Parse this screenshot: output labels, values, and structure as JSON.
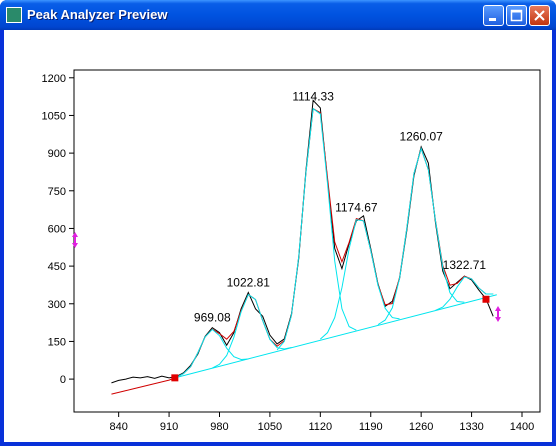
{
  "window": {
    "title": "Peak Analyzer Preview"
  },
  "chart_data": {
    "type": "line",
    "xlim": [
      778,
      1425
    ],
    "ylim": [
      -131,
      1231
    ],
    "xticks": [
      840,
      910,
      980,
      1050,
      1120,
      1190,
      1260,
      1330,
      1400
    ],
    "yticks": [
      0,
      150,
      300,
      450,
      600,
      750,
      900,
      1050,
      1200
    ],
    "series": [
      {
        "color": "#000000",
        "x": [
          830,
          840,
          850,
          860,
          870,
          880,
          890,
          900,
          910,
          920,
          930,
          940,
          950,
          960,
          970,
          980,
          990,
          1000,
          1010,
          1020,
          1030,
          1040,
          1050,
          1060,
          1070,
          1080,
          1090,
          1100,
          1110,
          1120,
          1130,
          1140,
          1150,
          1160,
          1170,
          1180,
          1190,
          1200,
          1210,
          1220,
          1230,
          1240,
          1250,
          1260,
          1270,
          1280,
          1290,
          1300,
          1310,
          1320,
          1330,
          1340,
          1350,
          1360
        ],
        "values": [
          -15,
          -5,
          0,
          8,
          5,
          10,
          3,
          12,
          5,
          10,
          25,
          55,
          100,
          170,
          205,
          185,
          135,
          185,
          280,
          345,
          280,
          250,
          175,
          140,
          160,
          260,
          480,
          830,
          1110,
          1080,
          790,
          520,
          440,
          540,
          630,
          650,
          520,
          380,
          290,
          310,
          400,
          590,
          810,
          925,
          860,
          620,
          430,
          360,
          385,
          410,
          395,
          355,
          320,
          250
        ]
      },
      {
        "color": "#d00000",
        "x": [
          830,
          840,
          850,
          860,
          870,
          880,
          890,
          900,
          910,
          920,
          930,
          940,
          950,
          960,
          970,
          980,
          990,
          1000,
          1010,
          1020,
          1030,
          1040,
          1050,
          1060,
          1070,
          1080,
          1090,
          1100,
          1110,
          1120,
          1130,
          1140,
          1150,
          1160,
          1170,
          1180,
          1190,
          1200,
          1210,
          1220,
          1230,
          1240,
          1250,
          1260,
          1270,
          1280,
          1290,
          1300,
          1310,
          1320,
          1330,
          1340,
          1350,
          1360
        ],
        "values": [
          -60,
          -53,
          -46,
          -39,
          -32,
          -25,
          -18,
          -11,
          -4,
          7,
          22,
          50,
          105,
          168,
          199,
          181,
          159,
          190,
          273,
          337,
          317,
          233,
          159,
          131,
          153,
          255,
          487,
          822,
          1077,
          1061,
          801,
          546,
          467,
          545,
          639,
          630,
          512,
          377,
          296,
          301,
          405,
          599,
          819,
          918,
          834,
          630,
          452,
          374,
          381,
          410,
          399,
          363,
          339,
          339
        ]
      },
      {
        "color": "#00e5ee",
        "x": [
          918,
          1365
        ],
        "values": [
          5,
          336
        ]
      },
      {
        "color": "#00e5ee",
        "label": "969.08",
        "x": [
          920,
          930,
          940,
          950,
          960,
          970,
          980,
          990,
          1000,
          1010,
          1020
        ],
        "values": [
          7,
          22,
          50,
          105,
          168,
          198,
          173,
          123,
          89,
          78,
          80
        ]
      },
      {
        "color": "#00e5ee",
        "label": "1022.81",
        "x": [
          970,
          980,
          990,
          1000,
          1010,
          1020,
          1030,
          1040,
          1050,
          1060,
          1070,
          1080
        ],
        "values": [
          44,
          59,
          94,
          167,
          268,
          337,
          317,
          233,
          158,
          125,
          120,
          126
        ]
      },
      {
        "color": "#00e5ee",
        "label": "1114.33",
        "x": [
          1060,
          1070,
          1080,
          1090,
          1100,
          1110,
          1120,
          1130,
          1140,
          1150,
          1160,
          1170
        ],
        "values": [
          116,
          150,
          255,
          487,
          822,
          1077,
          1056,
          778,
          470,
          280,
          209,
          195
        ]
      },
      {
        "color": "#00e5ee",
        "label": "1174.67",
        "x": [
          1120,
          1130,
          1140,
          1150,
          1160,
          1170,
          1180,
          1190,
          1200,
          1210,
          1220,
          1230
        ],
        "values": [
          159,
          185,
          245,
          364,
          520,
          635,
          630,
          512,
          374,
          282,
          245,
          240
        ]
      },
      {
        "color": "#00e5ee",
        "label": "1260.07",
        "x": [
          1200,
          1210,
          1220,
          1230,
          1240,
          1250,
          1260,
          1270,
          1280,
          1290,
          1300,
          1310,
          1320
        ],
        "values": [
          217,
          235,
          284,
          401,
          599,
          819,
          918,
          834,
          629,
          445,
          344,
          309,
          306
        ]
      },
      {
        "color": "#00e5ee",
        "label": "1322.71",
        "x": [
          1280,
          1290,
          1300,
          1310,
          1320,
          1330,
          1340,
          1350,
          1360
        ],
        "values": [
          274,
          287,
          318,
          367,
          407,
          399,
          363,
          339,
          339
        ]
      }
    ],
    "anchor_points": {
      "color": "#e00000",
      "x": [
        918,
        1350
      ],
      "values": [
        5,
        318
      ]
    }
  }
}
